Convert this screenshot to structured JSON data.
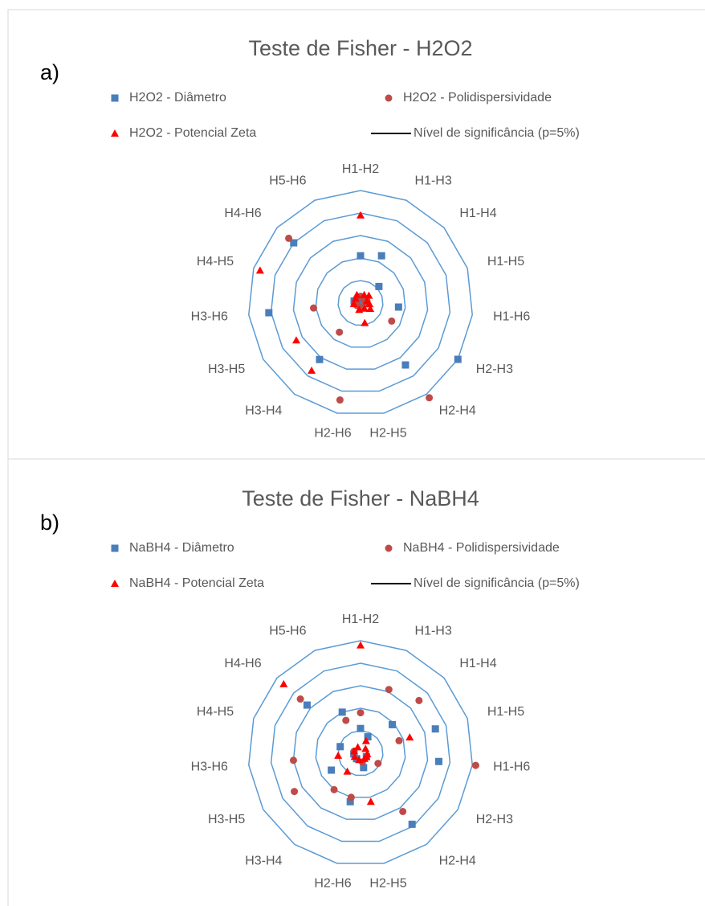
{
  "chart_data": [
    {
      "type": "radar",
      "label": "a)",
      "title": "Teste de Fisher - H2O2",
      "categories": [
        "H1-H2",
        "H1-H3",
        "H1-H4",
        "H1-H5",
        "H1-H6",
        "H2-H3",
        "H2-H4",
        "H2-H5",
        "H2-H6",
        "H3-H4",
        "H3-H5",
        "H3-H6",
        "H4-H5",
        "H4-H6",
        "H5-H6"
      ],
      "rlim": [
        0,
        5
      ],
      "rticks": [
        1,
        2,
        3,
        4,
        5
      ],
      "grid": true,
      "grid_color": "#5b9bd5",
      "series": [
        {
          "name": "H2O2 - Diâmetro",
          "color": "#4a7ebb",
          "marker": "square",
          "values": [
            2.1,
            2.3,
            1.1,
            0.2,
            1.7,
            5.0,
            3.4,
            0.1,
            0.1,
            3.1,
            0.1,
            4.1,
            0.3,
            4.0,
            0.2
          ]
        },
        {
          "name": "H2O2 - Polidispersividade",
          "color": "#be4b48",
          "marker": "circle",
          "values": [
            0.3,
            0.3,
            0.2,
            0.3,
            0.3,
            1.6,
            5.2,
            0.2,
            4.4,
            1.6,
            0.2,
            2.1,
            0.2,
            4.3,
            0.3
          ]
        },
        {
          "name": "H2O2 - Potencial Zeta",
          "color": "#ff0000",
          "marker": "triangle",
          "values": [
            3.9,
            0.4,
            0.5,
            0.3,
            0.4,
            0.5,
            0.3,
            0.9,
            0.3,
            3.7,
            3.3,
            0.3,
            4.7,
            0.3,
            0.4
          ]
        },
        {
          "name": "Nível de significância (p=5%)",
          "color": "#000000",
          "marker": "line",
          "values": [
            null,
            null,
            null,
            null,
            null,
            null,
            null,
            null,
            null,
            null,
            null,
            null,
            null,
            null,
            null
          ]
        }
      ]
    },
    {
      "type": "radar",
      "label": "b)",
      "title": "Teste de Fisher - NaBH4",
      "categories": [
        "H1-H2",
        "H1-H3",
        "H1-H4",
        "H1-H5",
        "H1-H6",
        "H2-H3",
        "H2-H4",
        "H2-H5",
        "H2-H6",
        "H3-H4",
        "H3-H5",
        "H3-H6",
        "H4-H5",
        "H4-H6",
        "H5-H6"
      ],
      "rlim": [
        0,
        5
      ],
      "rticks": [
        1,
        2,
        3,
        4,
        5
      ],
      "grid": true,
      "grid_color": "#5b9bd5",
      "series": [
        {
          "name": "NaBH4 - Diâmetro",
          "color": "#4a7ebb",
          "marker": "square",
          "values": [
            1.1,
            0.8,
            1.9,
            3.5,
            3.5,
            0.3,
            3.9,
            0.65,
            2.2,
            0.3,
            1.5,
            0.3,
            0.95,
            3.2,
            2.0
          ]
        },
        {
          "name": "NaBH4 - Polidispersividade",
          "color": "#be4b48",
          "marker": "circle",
          "values": [
            1.8,
            3.1,
            3.5,
            1.8,
            5.15,
            0.9,
            3.2,
            0.4,
            2.0,
            2.0,
            3.4,
            3.0,
            0.3,
            3.6,
            1.6
          ]
        },
        {
          "name": "NaBH4 - Potencial Zeta",
          "color": "#ff0000",
          "marker": "triangle",
          "values": [
            4.8,
            0.6,
            0.3,
            2.3,
            0.3,
            0.3,
            0.3,
            2.2,
            0.3,
            1.0,
            0.3,
            1.0,
            0.3,
            4.6,
            0.3
          ]
        },
        {
          "name": "Nível de significância (p=5%)",
          "color": "#000000",
          "marker": "line",
          "values": [
            null,
            null,
            null,
            null,
            null,
            null,
            null,
            null,
            null,
            null,
            null,
            null,
            null,
            null,
            null
          ]
        }
      ]
    }
  ]
}
